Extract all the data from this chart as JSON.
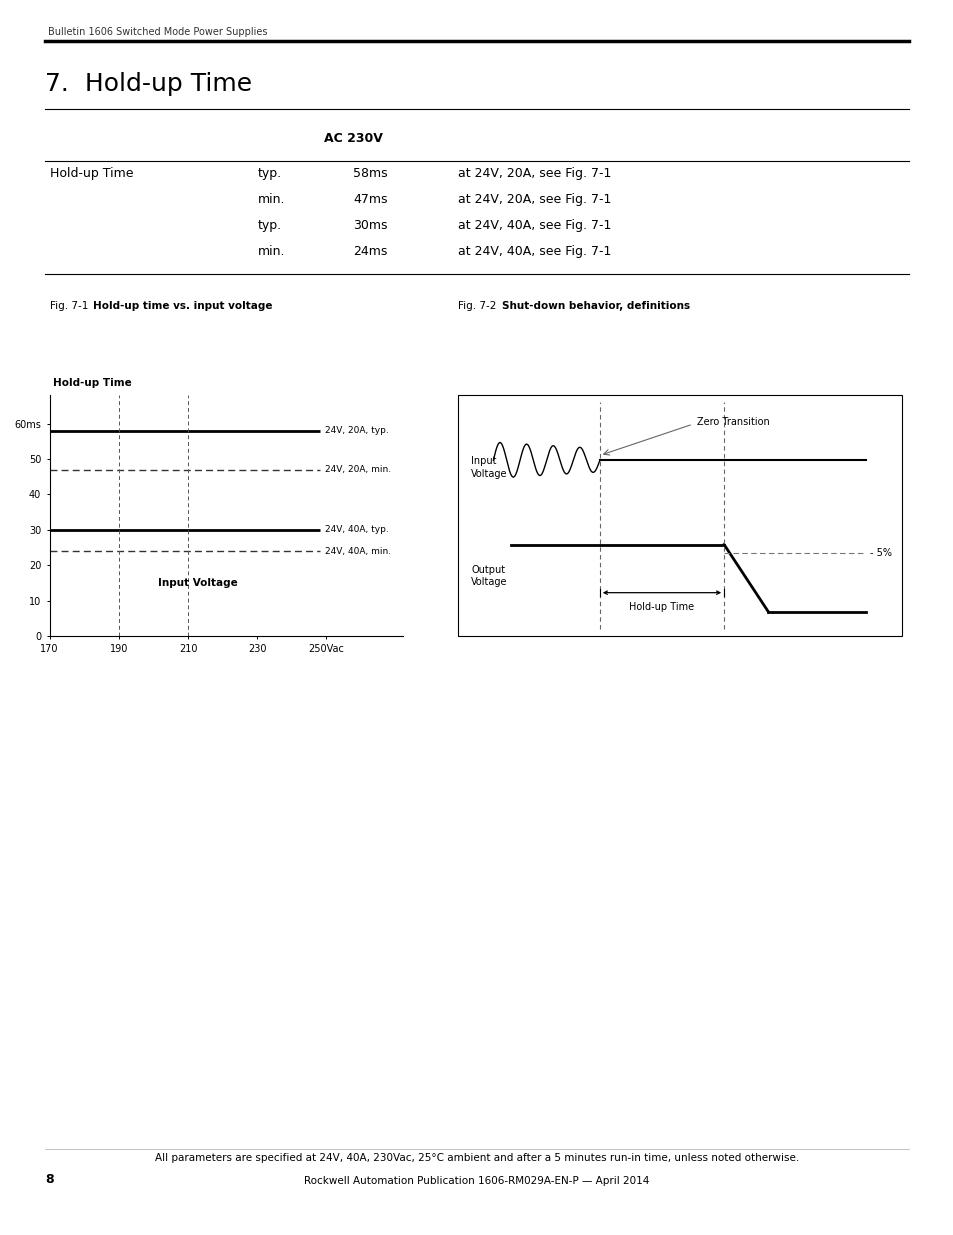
{
  "page_header": "Bulletin 1606 Switched Mode Power Supplies",
  "title": "7.  Hold-up Time",
  "table_header": "AC 230V",
  "table_col1_label": "Hold-up Time",
  "table_rows": [
    {
      "col2": "typ.",
      "col3": "58ms",
      "col4": "at 24V, 20A, see Fig. 7-1"
    },
    {
      "col2": "min.",
      "col3": "47ms",
      "col4": "at 24V, 20A, see Fig. 7-1"
    },
    {
      "col2": "typ.",
      "col3": "30ms",
      "col4": "at 24V, 40A, see Fig. 7-1"
    },
    {
      "col2": "min.",
      "col3": "24ms",
      "col4": "at 24V, 40A, see Fig. 7-1"
    }
  ],
  "fig1_caption_prefix": "Fig. 7-1",
  "fig1_caption_bold": "Hold-up time vs. input voltage",
  "fig2_caption_prefix": "Fig. 7-2",
  "fig2_caption_bold": "Shut-down behavior, definitions",
  "fig1_ylabel": "Hold-up Time",
  "fig1_xlabel": "Input Voltage",
  "fig1_yticks": [
    0,
    10,
    20,
    30,
    40,
    50,
    60
  ],
  "fig1_yticklabels": [
    "0",
    "10",
    "20",
    "30",
    "40",
    "50",
    "60ms"
  ],
  "fig1_xticks": [
    170,
    190,
    210,
    230,
    250
  ],
  "fig1_xticklabels": [
    "170",
    "190",
    "210",
    "230",
    "250Vac"
  ],
  "fig1_lines": [
    {
      "y": 58,
      "label": "24V, 20A, typ.",
      "style": "solid",
      "lw": 2.0
    },
    {
      "y": 47,
      "label": "24V, 20A, min.",
      "style": "dashed",
      "lw": 1.0
    },
    {
      "y": 30,
      "label": "24V, 40A, typ.",
      "style": "solid",
      "lw": 2.0
    },
    {
      "y": 24,
      "label": "24V, 40A, min.",
      "style": "dashed",
      "lw": 1.0
    }
  ],
  "fig1_vlines_x": [
    190,
    210
  ],
  "footer_line1": "All parameters are specified at 24V, 40A, 230Vac, 25°C ambient and after a 5 minutes run-in time, unless noted otherwise.",
  "footer_line2": "Rockwell Automation Publication 1606-RM029A-EN-P — April 2014",
  "footer_page": "8",
  "bg_color": "#ffffff",
  "text_color": "#000000",
  "line_color": "#000000",
  "dashed_color": "#555555"
}
